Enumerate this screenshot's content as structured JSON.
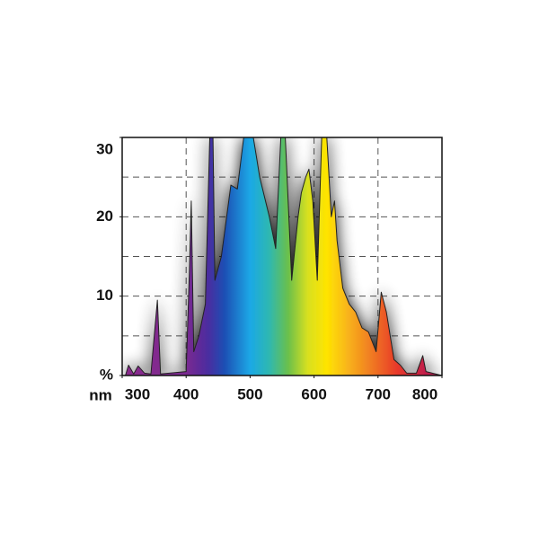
{
  "chart_data": {
    "type": "area",
    "x_label": "nm",
    "x": [
      300,
      305,
      310,
      318,
      325,
      335,
      345,
      355,
      360,
      400,
      405,
      408,
      412,
      420,
      430,
      437,
      442,
      445,
      455,
      470,
      480,
      490,
      505,
      515,
      530,
      540,
      548,
      555,
      565,
      575,
      580,
      587,
      592,
      598,
      605,
      612,
      620,
      627,
      632,
      636,
      645,
      655,
      665,
      675,
      685,
      697,
      705,
      713,
      725,
      735,
      745,
      760,
      770,
      775,
      800
    ],
    "values": [
      0,
      0,
      1.3,
      0.2,
      1.2,
      0.3,
      0.2,
      9.5,
      0.2,
      0.5,
      13,
      22,
      3,
      5,
      9,
      30,
      30,
      12,
      15,
      24,
      23.5,
      30,
      30,
      25,
      20,
      16,
      30,
      30,
      12,
      20,
      23,
      25,
      26,
      22,
      12,
      30,
      30,
      20,
      22,
      17,
      11,
      9,
      8,
      6,
      5.5,
      3,
      10.5,
      8,
      2,
      1.3,
      0.3,
      0.3,
      2.5,
      0.5,
      0
    ],
    "xlim": [
      300,
      800
    ],
    "ylim": [
      0,
      30
    ],
    "xticks": [
      300,
      400,
      500,
      600,
      700,
      800
    ],
    "yticks": [
      {
        "value": 0,
        "label": "%"
      },
      10,
      20,
      30
    ],
    "ygrid": [
      5,
      10,
      15,
      20,
      25
    ],
    "xgrid": [
      400,
      500,
      600,
      700
    ],
    "grid": true
  }
}
